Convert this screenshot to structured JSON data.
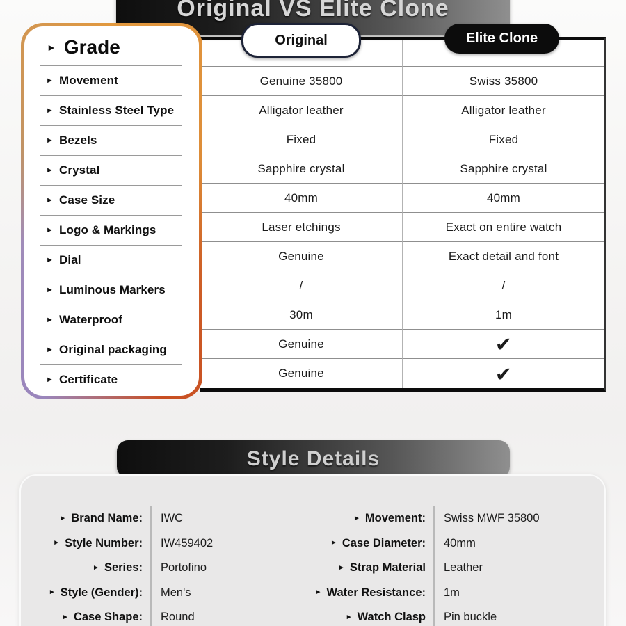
{
  "page": {
    "top_banner": {
      "title": "Original VS Elite Clone"
    },
    "comparison": {
      "grade_header": "Grade",
      "original_label": "Original",
      "clone_label": "Elite Clone",
      "rows": [
        {
          "feature": "Movement",
          "original": "Genuine 35800",
          "clone": "Swiss 35800"
        },
        {
          "feature": "Stainless Steel Type",
          "original": "Alligator leather",
          "clone": "Alligator leather"
        },
        {
          "feature": "Bezels",
          "original": "Fixed",
          "clone": "Fixed"
        },
        {
          "feature": "Crystal",
          "original": "Sapphire crystal",
          "clone": "Sapphire crystal"
        },
        {
          "feature": "Case Size",
          "original": "40mm",
          "clone": "40mm"
        },
        {
          "feature": "Logo & Markings",
          "original": "Laser etchings",
          "clone": "Exact on entire watch"
        },
        {
          "feature": "Dial",
          "original": "Genuine",
          "clone": "Exact detail and font"
        },
        {
          "feature": "Luminous Markers",
          "original": "/",
          "clone": "/"
        },
        {
          "feature": "Waterproof",
          "original": "30m",
          "clone": "1m"
        },
        {
          "feature": "Original packaging",
          "original": "Genuine",
          "clone": "✔"
        },
        {
          "feature": "Certificate",
          "original": "Genuine",
          "clone": "✔"
        }
      ]
    },
    "style_details": {
      "title": "Style Details",
      "left": [
        {
          "label": "Brand Name:",
          "value": "IWC"
        },
        {
          "label": "Style Number:",
          "value": "IW459402"
        },
        {
          "label": "Series:",
          "value": "Portofino"
        },
        {
          "label": "Style (Gender):",
          "value": "Men's"
        },
        {
          "label": "Case Shape:",
          "value": "Round"
        }
      ],
      "right": [
        {
          "label": "Movement:",
          "value": "Swiss MWF 35800"
        },
        {
          "label": "Case Diameter:",
          "value": "40mm"
        },
        {
          "label": "Strap Material",
          "value": "Leather"
        },
        {
          "label": "Water Resistance:",
          "value": "1m"
        },
        {
          "label": "Watch Clasp",
          "value": "Pin buckle"
        }
      ]
    },
    "colors": {
      "banner_gradient_start": "#0E0E0E",
      "banner_gradient_end": "#8F8F8F",
      "grade_border_orange": "#E2993F",
      "grade_border_purple": "#9A86BC",
      "grade_border_red_orange": "#C84E22",
      "original_pill_border": "#1D2337",
      "elite_pill_bg": "#0C0C0C"
    }
  }
}
